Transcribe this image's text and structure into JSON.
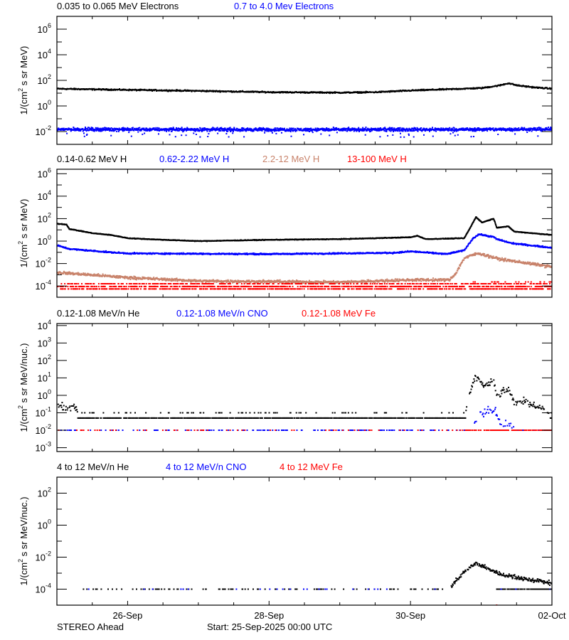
{
  "chart_data": [
    {
      "type": "scatter",
      "yscale": "log",
      "ylim": [
        0.001,
        10000000
      ],
      "xlim": [
        "2025-09-25T00:00",
        "2025-10-02T00:00"
      ],
      "ylabel": {
        "pre": "1/(cm",
        "sup": "2",
        "post": " s sr MeV)"
      },
      "ytick_exponents": [
        6,
        4,
        2,
        0,
        -2
      ],
      "series": [
        {
          "name": "0.035 to 0.065 MeV Electrons",
          "color": "#000000",
          "points": [
            [
              "2025-09-25T00:00",
              22
            ],
            [
              "2025-09-26T00:00",
              18
            ],
            [
              "2025-09-27T00:00",
              15
            ],
            [
              "2025-09-28T00:00",
              12
            ],
            [
              "2025-09-29T00:00",
              11
            ],
            [
              "2025-09-29T12:00",
              12
            ],
            [
              "2025-09-30T00:00",
              16
            ],
            [
              "2025-09-30T12:00",
              20
            ],
            [
              "2025-10-01T00:00",
              25
            ],
            [
              "2025-10-01T06:00",
              40
            ],
            [
              "2025-10-01T09:00",
              60
            ],
            [
              "2025-10-01T12:00",
              40
            ],
            [
              "2025-10-01T18:00",
              28
            ],
            [
              "2025-10-02T00:00",
              22
            ]
          ]
        },
        {
          "name": "0.7 to 4.0 Mev Electrons",
          "color": "#0000ff",
          "points": [
            [
              "2025-09-25T00:00",
              0.015
            ],
            [
              "2025-09-28T12:00",
              0.014
            ],
            [
              "2025-10-02T00:00",
              0.015
            ]
          ]
        }
      ]
    },
    {
      "type": "scatter",
      "yscale": "log",
      "ylim": [
        1e-05,
        2500000
      ],
      "xlim": [
        "2025-09-25T00:00",
        "2025-10-02T00:00"
      ],
      "ylabel": {
        "pre": "1/(cm",
        "sup": "2",
        "post": " s sr MeV)"
      },
      "ytick_exponents": [
        6,
        4,
        2,
        0,
        -2,
        -4
      ],
      "series": [
        {
          "name": "0.14-0.62 MeV H",
          "color": "#000000",
          "points": [
            [
              "2025-09-25T00:00",
              35
            ],
            [
              "2025-09-25T03:00",
              30
            ],
            [
              "2025-09-25T04:00",
              12
            ],
            [
              "2025-09-25T12:00",
              5
            ],
            [
              "2025-09-25T18:00",
              3.5
            ],
            [
              "2025-09-26T00:00",
              1.8
            ],
            [
              "2025-09-26T12:00",
              1.3
            ],
            [
              "2025-09-27T00:00",
              1.0
            ],
            [
              "2025-09-28T00:00",
              1.3
            ],
            [
              "2025-09-29T00:00",
              1.5
            ],
            [
              "2025-09-30T00:00",
              2.2
            ],
            [
              "2025-09-30T02:00",
              3
            ],
            [
              "2025-09-30T05:00",
              1.5
            ],
            [
              "2025-09-30T18:00",
              1.8
            ],
            [
              "2025-09-30T20:00",
              15
            ],
            [
              "2025-09-30T22:00",
              140
            ],
            [
              "2025-10-01T00:00",
              45
            ],
            [
              "2025-10-01T04:00",
              100
            ],
            [
              "2025-10-01T05:00",
              16
            ],
            [
              "2025-10-01T09:00",
              20
            ],
            [
              "2025-10-01T11:00",
              7
            ],
            [
              "2025-10-02T00:00",
              3.5
            ]
          ]
        },
        {
          "name": "0.62-2.22 MeV H",
          "color": "#0000ff",
          "points": [
            [
              "2025-09-25T00:00",
              0.4
            ],
            [
              "2025-09-25T04:00",
              0.2
            ],
            [
              "2025-09-25T18:00",
              0.1
            ],
            [
              "2025-09-26T00:00",
              0.08
            ],
            [
              "2025-09-28T00:00",
              0.07
            ],
            [
              "2025-09-29T18:00",
              0.09
            ],
            [
              "2025-09-30T00:00",
              0.12
            ],
            [
              "2025-09-30T12:00",
              0.07
            ],
            [
              "2025-09-30T18:00",
              0.15
            ],
            [
              "2025-09-30T21:00",
              1.8
            ],
            [
              "2025-09-30T23:00",
              4
            ],
            [
              "2025-10-01T04:00",
              2.3
            ],
            [
              "2025-10-01T05:00",
              1.5
            ],
            [
              "2025-10-01T10:00",
              0.65
            ],
            [
              "2025-10-02T00:00",
              0.25
            ]
          ]
        },
        {
          "name": "2.2-12 MeV H",
          "color": "#c8826a",
          "points": [
            [
              "2025-09-25T00:00",
              0.0016
            ],
            [
              "2025-09-26T00:00",
              0.00056
            ],
            [
              "2025-09-27T00:00",
              0.00028
            ],
            [
              "2025-09-29T00:00",
              0.00022
            ],
            [
              "2025-09-30T00:00",
              0.00035
            ],
            [
              "2025-09-30T13:00",
              0.00035
            ],
            [
              "2025-09-30T15:00",
              0.0012
            ],
            [
              "2025-09-30T18:00",
              0.03
            ],
            [
              "2025-09-30T21:00",
              0.06
            ],
            [
              "2025-09-30T23:00",
              0.08
            ],
            [
              "2025-10-01T06:00",
              0.025
            ],
            [
              "2025-10-02T00:00",
              0.005
            ]
          ]
        },
        {
          "name": "13-100 MeV H",
          "color": "#ff0000",
          "points": [
            [
              "2025-09-25T00:00",
              0.0001
            ],
            [
              "2025-10-02T00:00",
              0.0001
            ]
          ]
        }
      ]
    },
    {
      "type": "scatter",
      "yscale": "log",
      "ylim": [
        0.0006,
        13000
      ],
      "xlim": [
        "2025-09-25T00:00",
        "2025-10-02T00:00"
      ],
      "ylabel": {
        "pre": "1/(cm",
        "sup": "2",
        "post": " s sr MeV/nuc.)"
      },
      "ytick_exponents": [
        4,
        3,
        2,
        1,
        0,
        -1,
        -2,
        -3
      ],
      "series": [
        {
          "name": "0.12-1.08 MeV/n He",
          "color": "#000000",
          "points": [
            [
              "2025-09-25T00:00",
              0.25
            ],
            [
              "2025-09-25T06:00",
              0.2
            ],
            [
              "2025-09-25T08:00",
              0.05
            ],
            [
              "2025-09-30T18:00",
              0.05
            ],
            [
              "2025-09-30T20:00",
              1.5
            ],
            [
              "2025-09-30T22:00",
              12
            ],
            [
              "2025-10-01T01:00",
              3.4
            ],
            [
              "2025-10-01T04:00",
              6
            ],
            [
              "2025-10-01T05:00",
              1.2
            ],
            [
              "2025-10-01T06:00",
              1.2
            ],
            [
              "2025-10-01T09:00",
              2.3
            ],
            [
              "2025-10-01T11:00",
              0.3
            ],
            [
              "2025-10-01T14:00",
              0.5
            ],
            [
              "2025-10-01T20:00",
              0.2
            ],
            [
              "2025-10-02T00:00",
              0.1
            ]
          ]
        },
        {
          "name": "0.12-1.08 MeV/n CNO",
          "color": "#0000ff",
          "points": [
            [
              "2025-09-25T00:00",
              0.01
            ],
            [
              "2025-09-30T21:00",
              0.01
            ],
            [
              "2025-09-30T23:00",
              0.12
            ],
            [
              "2025-10-01T04:00",
              0.12
            ],
            [
              "2025-10-01T06:00",
              0.03
            ],
            [
              "2025-10-01T10:00",
              0.02
            ],
            [
              "2025-10-01T12:00",
              0.01
            ],
            [
              "2025-10-02T00:00",
              0.01
            ]
          ]
        },
        {
          "name": "0.12-1.08 MeV Fe",
          "color": "#ff0000",
          "points": [
            [
              "2025-09-25T00:00",
              0.01
            ],
            [
              "2025-10-02T00:00",
              0.01
            ]
          ]
        }
      ]
    },
    {
      "type": "scatter",
      "yscale": "log",
      "ylim": [
        1e-05,
        1000
      ],
      "xlim": [
        "2025-09-25T00:00",
        "2025-10-02T00:00"
      ],
      "ylabel": {
        "pre": "1/(cm",
        "sup": "2",
        "post": " s sr MeV/nuc.)"
      },
      "ytick_exponents": [
        2,
        0,
        -2,
        -4
      ],
      "series": [
        {
          "name": "4 to 12 MeV/n He",
          "color": "#000000",
          "points": [
            [
              "2025-09-25T00:00",
              0.0001
            ],
            [
              "2025-09-30T13:00",
              0.0001
            ],
            [
              "2025-09-30T14:00",
              0.00019
            ],
            [
              "2025-09-30T16:00",
              0.0005
            ],
            [
              "2025-09-30T19:00",
              0.0018
            ],
            [
              "2025-09-30T22:00",
              0.004
            ],
            [
              "2025-10-01T01:00",
              0.0024
            ],
            [
              "2025-10-01T06:00",
              0.0009
            ],
            [
              "2025-10-01T14:00",
              0.00046
            ],
            [
              "2025-10-02T00:00",
              0.00023
            ]
          ]
        },
        {
          "name": "4 to 12 MeV/n CNO",
          "color": "#0000ff",
          "points": [
            [
              "2025-09-25T00:00",
              0.0001
            ],
            [
              "2025-10-02T00:00",
              0.0001
            ]
          ]
        },
        {
          "name": "4 to 12 MeV Fe",
          "color": "#ff0000",
          "points": [
            [
              "2025-10-01T05:00",
              1e-05
            ]
          ]
        }
      ]
    }
  ],
  "xaxis": {
    "tick_labels": [
      {
        "label": "26-Sep",
        "date": "2025-09-26T00:00"
      },
      {
        "label": "28-Sep",
        "date": "2025-09-28T00:00"
      },
      {
        "label": "30-Sep",
        "date": "2025-09-30T00:00"
      },
      {
        "label": "02-Oct",
        "date": "2025-10-02T00:00"
      }
    ]
  },
  "footer": {
    "spacecraft": "STEREO Ahead",
    "start": "Start: 25-Sep-2025 00:00 UTC"
  }
}
